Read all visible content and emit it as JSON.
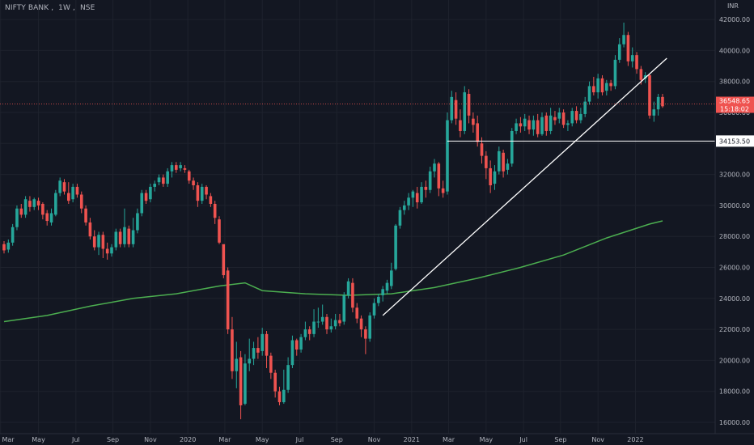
{
  "header": {
    "symbol": "NIFTY BANK",
    "interval": "1W",
    "exchange": "NSE"
  },
  "chart_data": {
    "type": "candlestick",
    "title": "",
    "currency": "INR",
    "grid": true,
    "y_axis_side": "right",
    "ylim": [
      15500,
      42200
    ],
    "y_ticks": [
      16000,
      18000,
      20000,
      22000,
      24000,
      26000,
      28000,
      30000,
      32000,
      34000,
      36000,
      38000,
      40000,
      42000
    ],
    "y_tick_labels": [
      "16000.00",
      "18000.00",
      "20000.00",
      "22000.00",
      "24000.00",
      "26000.00",
      "28000.00",
      "30000.00",
      "32000.00",
      "34000.00",
      "36000.00",
      "38000.00",
      "40000.00",
      "42000.00"
    ],
    "x_ticks": [
      {
        "label": "Mar",
        "t": -0.8
      },
      {
        "label": "May",
        "t": 8
      },
      {
        "label": "Jul",
        "t": 16.7
      },
      {
        "label": "Sep",
        "t": 25.3
      },
      {
        "label": "Nov",
        "t": 34
      },
      {
        "label": "2020",
        "t": 42.7
      },
      {
        "label": "Mar",
        "t": 51.3
      },
      {
        "label": "May",
        "t": 60
      },
      {
        "label": "Jul",
        "t": 68.7
      },
      {
        "label": "Sep",
        "t": 77.3
      },
      {
        "label": "Nov",
        "t": 86
      },
      {
        "label": "2021",
        "t": 94.7
      },
      {
        "label": "Mar",
        "t": 103.3
      },
      {
        "label": "May",
        "t": 112
      },
      {
        "label": "Jul",
        "t": 120.7
      },
      {
        "label": "Sep",
        "t": 129.3
      },
      {
        "label": "Nov",
        "t": 138
      },
      {
        "label": "2022",
        "t": 146.7
      }
    ],
    "colors": {
      "up": "#26a69a",
      "down": "#ef5350",
      "ma": "#4caf50",
      "trendline": "#ffffff",
      "background": "#131722",
      "grid": "#1e222d"
    },
    "candles": [
      [
        0,
        27500,
        27100,
        27700,
        26900
      ],
      [
        1,
        27150,
        27600,
        27800,
        26950
      ],
      [
        2,
        27600,
        28600,
        28800,
        27400
      ],
      [
        3,
        28600,
        29800,
        30000,
        28400
      ],
      [
        4,
        29800,
        29400,
        30100,
        29200
      ],
      [
        5,
        29400,
        30400,
        30600,
        29200
      ],
      [
        6,
        30300,
        29900,
        30600,
        29600
      ],
      [
        7,
        29900,
        30400,
        30500,
        29700
      ],
      [
        8,
        30300,
        30000,
        30500,
        29700
      ],
      [
        9,
        30100,
        29400,
        30200,
        29100
      ],
      [
        10,
        29500,
        29000,
        29700,
        28700
      ],
      [
        11,
        28900,
        29500,
        29800,
        28700
      ],
      [
        12,
        29400,
        30800,
        31000,
        29300
      ],
      [
        13,
        30800,
        31600,
        31800,
        30600
      ],
      [
        14,
        31500,
        30900,
        31700,
        30700
      ],
      [
        15,
        30800,
        30300,
        31500,
        30100
      ],
      [
        16,
        30400,
        31200,
        31400,
        30200
      ],
      [
        17,
        31200,
        30700,
        31400,
        30500
      ],
      [
        18,
        30700,
        29800,
        30900,
        29500
      ],
      [
        19,
        29800,
        28900,
        30000,
        28700
      ],
      [
        20,
        28900,
        28000,
        29200,
        27800
      ],
      [
        21,
        28000,
        27300,
        28400,
        27100
      ],
      [
        22,
        27300,
        28100,
        28300,
        26800
      ],
      [
        23,
        28100,
        27200,
        28300,
        26600
      ],
      [
        24,
        27200,
        26900,
        27600,
        26500
      ],
      [
        25,
        26900,
        27300,
        27500,
        26700
      ],
      [
        26,
        27300,
        28300,
        28500,
        27100
      ],
      [
        27,
        28300,
        27500,
        28500,
        27300
      ],
      [
        28,
        27500,
        28600,
        29800,
        27300
      ],
      [
        29,
        28500,
        27500,
        28700,
        27300
      ],
      [
        30,
        27500,
        28400,
        29200,
        27300
      ],
      [
        31,
        28400,
        29500,
        29800,
        28200
      ],
      [
        32,
        29500,
        30800,
        31000,
        29300
      ],
      [
        33,
        30800,
        30300,
        31000,
        30100
      ],
      [
        34,
        30400,
        31200,
        31400,
        30200
      ],
      [
        35,
        31200,
        31400,
        31600,
        30900
      ],
      [
        36,
        31500,
        31800,
        32000,
        31300
      ],
      [
        37,
        31800,
        31400,
        32000,
        31200
      ],
      [
        38,
        31400,
        32200,
        32400,
        31200
      ],
      [
        39,
        32200,
        32600,
        32800,
        31800
      ],
      [
        40,
        32600,
        32300,
        32800,
        32100
      ],
      [
        41,
        32400,
        32600,
        32800,
        32200
      ],
      [
        42,
        32400,
        32300,
        32600,
        32100
      ],
      [
        43,
        32200,
        31600,
        32300,
        31400
      ],
      [
        44,
        31600,
        31300,
        31800,
        31000
      ],
      [
        45,
        31300,
        30300,
        31500,
        29900
      ],
      [
        46,
        30300,
        31200,
        31400,
        30100
      ],
      [
        47,
        31200,
        30700,
        31300,
        30400
      ],
      [
        48,
        30600,
        30100,
        30800,
        29900
      ],
      [
        49,
        30100,
        29200,
        30300,
        28800
      ],
      [
        50,
        29100,
        27600,
        29300,
        27500
      ],
      [
        51,
        27500,
        25500,
        27400,
        25300
      ],
      [
        52,
        25800,
        22000,
        26000,
        21700
      ],
      [
        53,
        22000,
        19300,
        22800,
        18800
      ],
      [
        54,
        19300,
        20100,
        21200,
        18200
      ],
      [
        55,
        20200,
        17100,
        20600,
        16200
      ],
      [
        56,
        17200,
        19800,
        20400,
        17100
      ],
      [
        57,
        19800,
        20100,
        21400,
        19300
      ],
      [
        58,
        20100,
        20800,
        21200,
        19700
      ],
      [
        59,
        20800,
        20500,
        21500,
        20100
      ],
      [
        60,
        20600,
        21700,
        22100,
        20300
      ],
      [
        61,
        21700,
        20300,
        21900,
        19500
      ],
      [
        62,
        20300,
        19200,
        20500,
        18800
      ],
      [
        63,
        19200,
        18000,
        19400,
        17600
      ],
      [
        64,
        18000,
        17300,
        18300,
        17100
      ],
      [
        65,
        17300,
        18100,
        19400,
        17200
      ],
      [
        66,
        18100,
        19700,
        20200,
        17900
      ],
      [
        67,
        19700,
        21300,
        21600,
        19500
      ],
      [
        68,
        21300,
        20700,
        21400,
        20300
      ],
      [
        69,
        20700,
        21500,
        21700,
        20500
      ],
      [
        70,
        21500,
        22000,
        22500,
        21300
      ],
      [
        71,
        22000,
        21700,
        22200,
        21300
      ],
      [
        72,
        21700,
        22500,
        23300,
        21500
      ],
      [
        73,
        22500,
        22500,
        23400,
        22100
      ],
      [
        74,
        22500,
        22800,
        23600,
        22300
      ],
      [
        75,
        22800,
        22000,
        23000,
        21700
      ],
      [
        76,
        22000,
        22200,
        22700,
        21800
      ],
      [
        77,
        22200,
        22600,
        23000,
        22000
      ],
      [
        78,
        22600,
        22400,
        23000,
        22200
      ],
      [
        79,
        22500,
        24200,
        24400,
        22300
      ],
      [
        80,
        24200,
        25100,
        25300,
        24000
      ],
      [
        81,
        25000,
        23400,
        25300,
        23100
      ],
      [
        82,
        23400,
        22700,
        23700,
        22400
      ],
      [
        83,
        22700,
        22000,
        22900,
        21500
      ],
      [
        84,
        22000,
        21400,
        22200,
        20400
      ],
      [
        85,
        21400,
        22900,
        23100,
        21200
      ],
      [
        86,
        22900,
        23700,
        24000,
        22700
      ],
      [
        87,
        23700,
        24100,
        24300,
        23500
      ],
      [
        88,
        24200,
        24600,
        24800,
        23800
      ],
      [
        89,
        24500,
        25000,
        25200,
        24300
      ],
      [
        90,
        24800,
        25800,
        26300,
        24600
      ],
      [
        91,
        25900,
        28700,
        28800,
        25800
      ],
      [
        92,
        28700,
        29700,
        29900,
        28500
      ],
      [
        93,
        29700,
        30000,
        30300,
        29400
      ],
      [
        94,
        30000,
        30500,
        30800,
        29700
      ],
      [
        95,
        30500,
        30900,
        31000,
        29900
      ],
      [
        96,
        30800,
        30200,
        31200,
        29800
      ],
      [
        97,
        30200,
        31200,
        31500,
        30100
      ],
      [
        98,
        31200,
        31000,
        31600,
        30500
      ],
      [
        99,
        31000,
        32200,
        32500,
        30800
      ],
      [
        100,
        32200,
        32700,
        33000,
        31800
      ],
      [
        101,
        32700,
        31100,
        32800,
        30600
      ],
      [
        102,
        31100,
        30800,
        31600,
        30500
      ],
      [
        103,
        30900,
        35500,
        36000,
        30700
      ],
      [
        104,
        35500,
        37000,
        37400,
        35300
      ],
      [
        105,
        36800,
        35600,
        37300,
        35200
      ],
      [
        106,
        35500,
        34800,
        36200,
        34400
      ],
      [
        107,
        34800,
        37300,
        37700,
        34600
      ],
      [
        108,
        37200,
        35800,
        37500,
        35300
      ],
      [
        109,
        35600,
        35200,
        36000,
        34700
      ],
      [
        110,
        35300,
        34100,
        35800,
        33800
      ],
      [
        111,
        34000,
        33200,
        34400,
        32700
      ],
      [
        112,
        33200,
        32400,
        33500,
        31700
      ],
      [
        113,
        32400,
        31300,
        32900,
        30800
      ],
      [
        114,
        31400,
        32200,
        32600,
        31000
      ],
      [
        115,
        32200,
        33500,
        33800,
        32000
      ],
      [
        116,
        33400,
        32200,
        33600,
        31800
      ],
      [
        117,
        32300,
        32700,
        33000,
        32000
      ],
      [
        118,
        32700,
        34800,
        35000,
        32500
      ],
      [
        119,
        34800,
        35300,
        35600,
        34600
      ],
      [
        120,
        35300,
        35100,
        35700,
        34700
      ],
      [
        121,
        35100,
        35600,
        35900,
        34800
      ],
      [
        122,
        35500,
        34900,
        35800,
        34600
      ],
      [
        123,
        34900,
        35500,
        35800,
        34500
      ],
      [
        124,
        35500,
        34600,
        35900,
        34400
      ],
      [
        125,
        34600,
        35700,
        36000,
        34500
      ],
      [
        126,
        35800,
        34800,
        36000,
        34500
      ],
      [
        127,
        34800,
        35800,
        36300,
        34600
      ],
      [
        128,
        35700,
        35500,
        36100,
        35200
      ],
      [
        129,
        35600,
        36000,
        36300,
        35300
      ],
      [
        130,
        36000,
        35200,
        36200,
        35000
      ],
      [
        131,
        35200,
        35300,
        35500,
        34800
      ],
      [
        132,
        35300,
        36100,
        36300,
        35100
      ],
      [
        133,
        36100,
        35500,
        36400,
        35300
      ],
      [
        134,
        35500,
        35900,
        36300,
        35300
      ],
      [
        135,
        35900,
        36700,
        37000,
        35700
      ],
      [
        136,
        36700,
        37700,
        38000,
        36500
      ],
      [
        137,
        37700,
        37300,
        38300,
        37100
      ],
      [
        138,
        37300,
        38200,
        38500,
        36900
      ],
      [
        139,
        38200,
        37300,
        38400,
        37100
      ],
      [
        140,
        37400,
        37900,
        38100,
        37100
      ],
      [
        141,
        37900,
        37700,
        38100,
        37400
      ],
      [
        142,
        37700,
        39400,
        39700,
        37500
      ],
      [
        143,
        39400,
        40400,
        40800,
        39200
      ],
      [
        144,
        40400,
        41000,
        41800,
        40200
      ],
      [
        145,
        41000,
        39300,
        41200,
        39000
      ],
      [
        146,
        39300,
        39700,
        40200,
        38900
      ],
      [
        147,
        39700,
        38800,
        39900,
        38500
      ],
      [
        148,
        38800,
        38100,
        39000,
        37800
      ],
      [
        149,
        38200,
        38400,
        38600,
        37900
      ],
      [
        150,
        38400,
        35800,
        38500,
        35600
      ],
      [
        151,
        35800,
        36200,
        36700,
        35400
      ],
      [
        152,
        36200,
        37000,
        37200,
        35800
      ],
      [
        153,
        37000,
        36400,
        37200,
        36300
      ]
    ],
    "moving_average": [
      [
        0,
        22500
      ],
      [
        10,
        22900
      ],
      [
        20,
        23500
      ],
      [
        30,
        24000
      ],
      [
        40,
        24300
      ],
      [
        50,
        24800
      ],
      [
        56,
        25000
      ],
      [
        60,
        24500
      ],
      [
        70,
        24300
      ],
      [
        80,
        24200
      ],
      [
        90,
        24300
      ],
      [
        100,
        24700
      ],
      [
        110,
        25300
      ],
      [
        120,
        26000
      ],
      [
        130,
        26800
      ],
      [
        140,
        27900
      ],
      [
        150,
        28800
      ],
      [
        153,
        29000
      ]
    ],
    "trendline": [
      [
        88,
        22900
      ],
      [
        154,
        39500
      ]
    ],
    "horizontal_line": {
      "value": 34153.5,
      "label": "34153.50"
    },
    "last_price": {
      "value": 36548.65,
      "label": "36548.65",
      "countdown": "15:18:02"
    }
  }
}
